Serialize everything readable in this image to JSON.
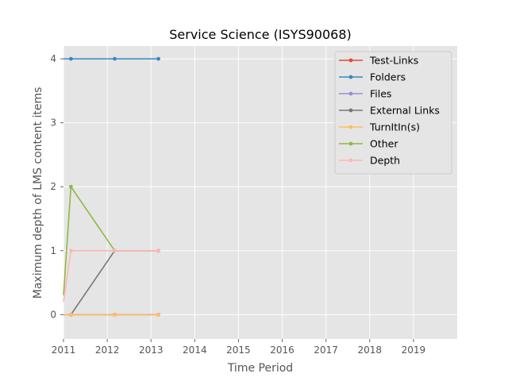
{
  "chart_data": {
    "type": "line",
    "title": "Service Science (ISYS90068)",
    "xlabel": "Time Period",
    "ylabel": "Maximum depth of LMS content items",
    "xlim": [
      2011,
      2020
    ],
    "ylim": [
      -0.38,
      4.2
    ],
    "x_ticks": [
      "2011",
      "2012",
      "2013",
      "2014",
      "2015",
      "2016",
      "2017",
      "2018",
      "2019"
    ],
    "y_ticks": [
      "0",
      "1",
      "2",
      "3",
      "4"
    ],
    "grid": true,
    "legend_position": "top-right",
    "series": [
      {
        "name": "Test-Links",
        "color": "#E24A33",
        "x": [
          2011.0,
          2011.17,
          2012.17,
          2013.17
        ],
        "values": [
          0,
          0,
          0,
          0
        ]
      },
      {
        "name": "Folders",
        "color": "#348ABD",
        "x": [
          2011.0,
          2011.17,
          2012.17,
          2013.17
        ],
        "values": [
          4,
          4,
          4,
          4
        ]
      },
      {
        "name": "Files",
        "color": "#988ED5",
        "x": [
          2011.0,
          2011.17,
          2012.17,
          2013.17
        ],
        "values": [
          0,
          0,
          0,
          0
        ]
      },
      {
        "name": "External Links",
        "color": "#777777",
        "x": [
          2011.17,
          2012.17,
          2013.17
        ],
        "values": [
          0,
          1,
          1
        ]
      },
      {
        "name": "TurnItIn(s)",
        "color": "#FBC15E",
        "x": [
          2011.0,
          2011.17,
          2012.17,
          2013.17
        ],
        "values": [
          0,
          0,
          0,
          0
        ]
      },
      {
        "name": "Other",
        "color": "#8EBA42",
        "x": [
          2011.0,
          2011.17,
          2012.17,
          2013.17
        ],
        "values": [
          0.3,
          2,
          1,
          1
        ]
      },
      {
        "name": "Depth",
        "color": "#FFB5B8",
        "x": [
          2011.0,
          2011.17,
          2012.17,
          2013.17
        ],
        "values": [
          0.2,
          1,
          1,
          1
        ]
      }
    ]
  },
  "colors": {
    "plot_background": "#E5E5E5",
    "grid": "#FFFFFF",
    "legend_background": "#E5E5E5",
    "legend_border": "#CCCCCC"
  }
}
